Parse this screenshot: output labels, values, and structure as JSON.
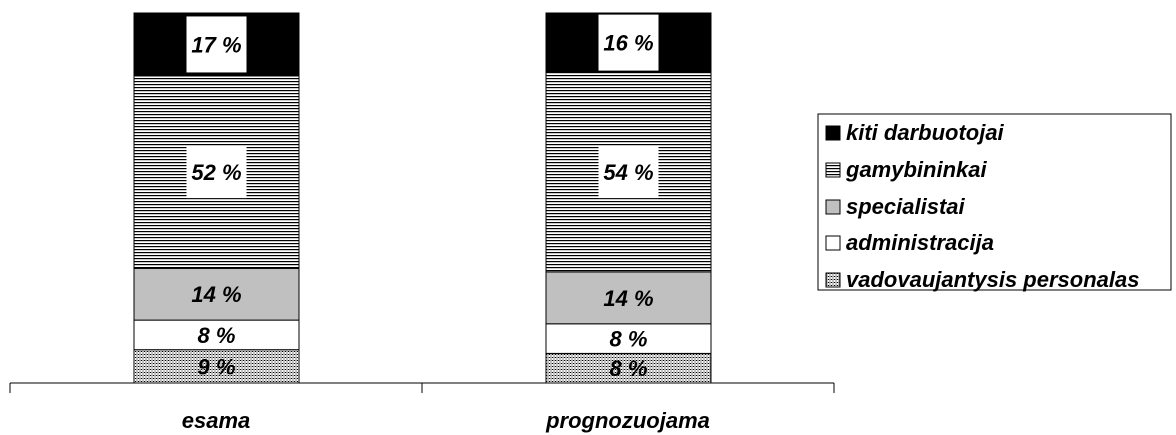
{
  "chart_data": {
    "type": "bar",
    "stacked": true,
    "percent": true,
    "categories": [
      "esama",
      "prognozuojama"
    ],
    "series": [
      {
        "name": "vadovaujantysis personalas",
        "values": [
          9,
          8
        ],
        "labels": [
          "9 %",
          "8 %"
        ],
        "pattern": "dotted"
      },
      {
        "name": "administracija",
        "values": [
          8,
          8
        ],
        "labels": [
          "8 %",
          "8 %"
        ],
        "pattern": "white"
      },
      {
        "name": "specialistai",
        "values": [
          14,
          14
        ],
        "labels": [
          "14 %",
          "14 %"
        ],
        "pattern": "gray"
      },
      {
        "name": "gamybininkai",
        "values": [
          52,
          54
        ],
        "labels": [
          "52 %",
          "54 %"
        ],
        "pattern": "horizontal-lines"
      },
      {
        "name": "kiti darbuotojai",
        "values": [
          17,
          16
        ],
        "labels": [
          "17 %",
          "16 %"
        ],
        "pattern": "black"
      }
    ],
    "legend_order": [
      "kiti darbuotojai",
      "gamybininkai",
      "specialistai",
      "administracija",
      "vadovaujantysis personalas"
    ],
    "legend_placement": "right",
    "grid": false,
    "colors": {
      "black": "#000000",
      "gray": "#c0c0c0",
      "white": "#ffffff"
    }
  }
}
